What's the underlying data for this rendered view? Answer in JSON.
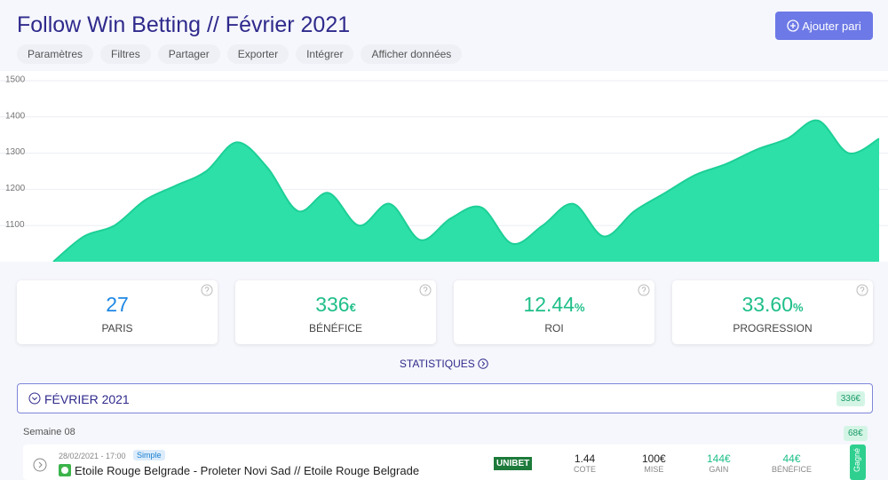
{
  "header": {
    "title": "Follow Win Betting // Février 2021",
    "toolbar": [
      "Paramètres",
      "Filtres",
      "Partager",
      "Exporter",
      "Intégrer",
      "Afficher données"
    ],
    "add_button": "Ajouter pari"
  },
  "chart_data": {
    "type": "area",
    "color": "#2de0a8",
    "values": [
      1000,
      1070,
      1100,
      1170,
      1210,
      1250,
      1330,
      1260,
      1140,
      1190,
      1100,
      1160,
      1060,
      1120,
      1150,
      1050,
      1100,
      1160,
      1070,
      1140,
      1190,
      1240,
      1270,
      1310,
      1340,
      1390,
      1300,
      1340
    ],
    "ylim": [
      1000,
      1500
    ],
    "yticks": [
      1100,
      1200,
      1300,
      1400,
      1500
    ],
    "grid": true
  },
  "cards": [
    {
      "value": "27",
      "unit": "",
      "label": "PARIS",
      "color": "#1e88e5"
    },
    {
      "value": "336",
      "unit": "€",
      "label": "BÉNÉFICE",
      "color": "#1fbf88"
    },
    {
      "value": "12.44",
      "unit": "%",
      "label": "ROI",
      "color": "#1fbf88"
    },
    {
      "value": "33.60",
      "unit": "%",
      "label": "PROGRESSION",
      "color": "#1fbf88"
    }
  ],
  "stats_link": "STATISTIQUES",
  "month": {
    "label": "FÉVRIER 2021",
    "total": "336€"
  },
  "week": {
    "label": "Semaine 08",
    "total": "68€"
  },
  "bet": {
    "date": "28/02/2021 - 17:00",
    "kind": "Simple",
    "event": "Etoile Rouge Belgrade - Proleter Novi Sad // Etoile Rouge Belgrade",
    "bookmaker": "UNIBET",
    "cols": [
      {
        "value": "1.44",
        "label": "COTE"
      },
      {
        "value": "100€",
        "label": "MISE"
      },
      {
        "value": "144€",
        "label": "GAIN"
      },
      {
        "value": "44€",
        "label": "BÉNÉFICE"
      }
    ],
    "status": "Gagné"
  }
}
